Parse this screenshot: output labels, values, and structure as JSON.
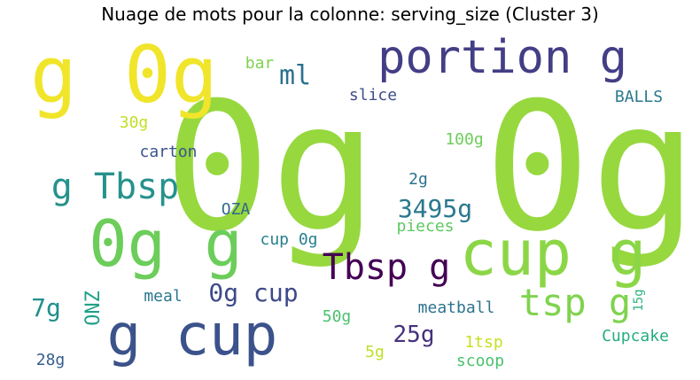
{
  "chart_data": {
    "type": "wordcloud",
    "title": "Nuage de mots pour la colonne: serving_size (Cluster 3)",
    "words": [
      {
        "text": "0g 0g",
        "color": "#97d83f"
      },
      {
        "text": "g 0g",
        "color": "#f0e52a"
      },
      {
        "text": "portion g",
        "color": "#433e85"
      },
      {
        "text": "ml",
        "color": "#2c718e"
      },
      {
        "text": "bar",
        "color": "#7ed34f"
      },
      {
        "text": "slice",
        "color": "#3e4c8a"
      },
      {
        "text": "BALLS",
        "color": "#2a788e"
      },
      {
        "text": "30g",
        "color": "#c2df23"
      },
      {
        "text": "carton",
        "color": "#3b528b"
      },
      {
        "text": "100g",
        "color": "#6ccd5a"
      },
      {
        "text": "g Tbsp",
        "color": "#26928c"
      },
      {
        "text": "2g",
        "color": "#2c718e"
      },
      {
        "text": "OZA",
        "color": "#31688e"
      },
      {
        "text": "3495g",
        "color": "#2a788e"
      },
      {
        "text": "0g g",
        "color": "#6ccd5a"
      },
      {
        "text": "cup g",
        "color": "#8bd646"
      },
      {
        "text": "pieces",
        "color": "#5ec962"
      },
      {
        "text": "cup 0g",
        "color": "#277f8e"
      },
      {
        "text": "Tbsp g",
        "color": "#440154"
      },
      {
        "text": "tsp g",
        "color": "#7fd34e"
      },
      {
        "text": "0g cup",
        "color": "#3e4989"
      },
      {
        "text": "7g",
        "color": "#218f8d"
      },
      {
        "text": "ONZ",
        "color": "#1fa187"
      },
      {
        "text": "meal",
        "color": "#2a788e"
      },
      {
        "text": "g cup",
        "color": "#3b528b"
      },
      {
        "text": "50g",
        "color": "#4ac16d"
      },
      {
        "text": "meatball",
        "color": "#2c728e"
      },
      {
        "text": "15g",
        "color": "#2db27d"
      },
      {
        "text": "25g",
        "color": "#46307e"
      },
      {
        "text": "1tsp",
        "color": "#c8e020"
      },
      {
        "text": "Cupcake",
        "color": "#26ad81"
      },
      {
        "text": "28g",
        "color": "#365c8d"
      },
      {
        "text": "5g",
        "color": "#bddf26"
      },
      {
        "text": "scoop",
        "color": "#4ac16d"
      }
    ]
  }
}
